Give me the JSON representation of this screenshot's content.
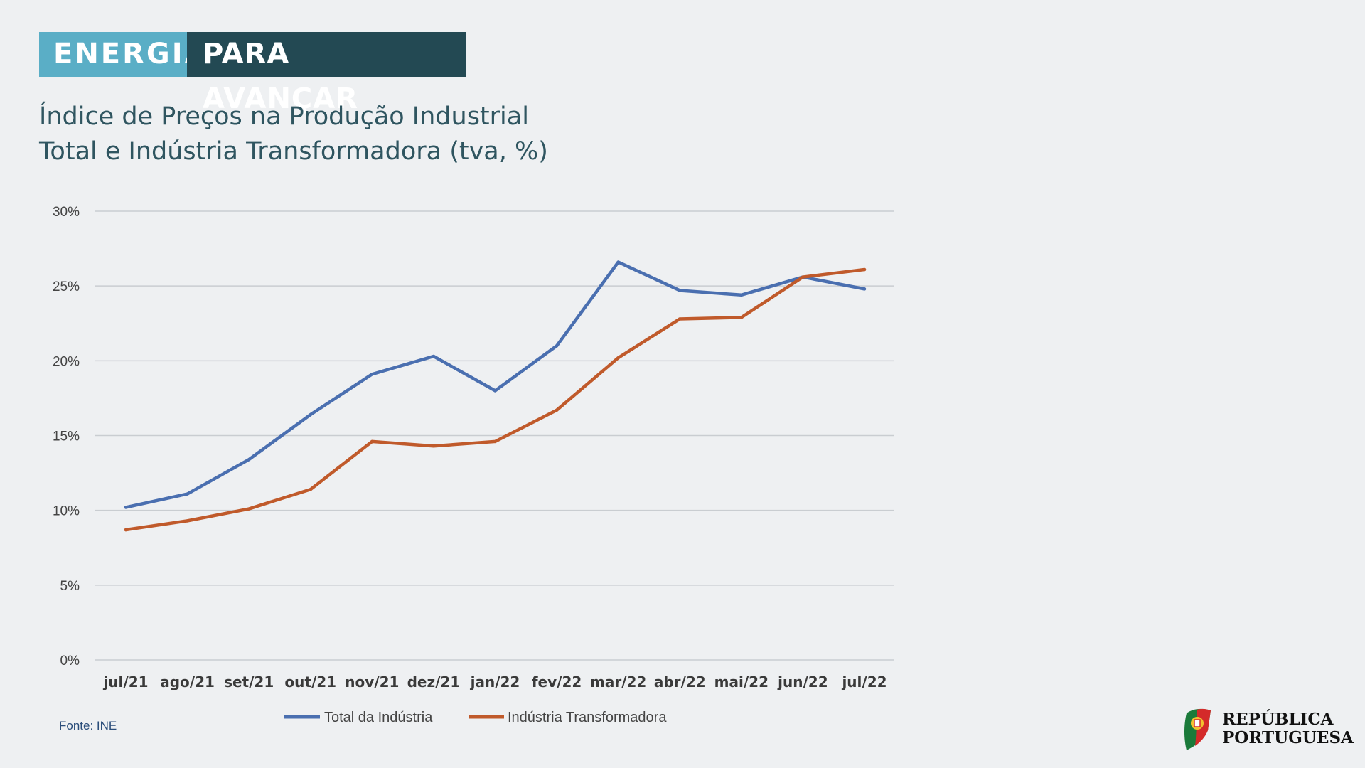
{
  "banner": {
    "left": "ENERGIA",
    "right": "PARA AVANÇAR"
  },
  "colors": {
    "banner_left": "#5aaec6",
    "banner_right": "#234953",
    "series_total": "#4a6fb0",
    "series_transf": "#c05a2b"
  },
  "source": "Fonte: INE",
  "logo": {
    "line1": "REPÚBLICA",
    "line2": "PORTUGUESA",
    "icon": "portuguese-flag-icon"
  },
  "chart_data": {
    "type": "line",
    "title": [
      "Índice de Preços na Produção Industrial",
      "Total e Indústria Transformadora (tva, %)"
    ],
    "xlabel": "",
    "ylabel": "",
    "categories": [
      "jul/21",
      "ago/21",
      "set/21",
      "out/21",
      "nov/21",
      "dez/21",
      "jan/22",
      "fev/22",
      "mar/22",
      "abr/22",
      "mai/22",
      "jun/22",
      "jul/22"
    ],
    "y_ticks": [
      "0%",
      "5%",
      "10%",
      "15%",
      "20%",
      "25%",
      "30%"
    ],
    "ylim": [
      0,
      30
    ],
    "grid": true,
    "legend": "bottom",
    "series": [
      {
        "name": "Total da Indústria",
        "color": "#4a6fb0",
        "values": [
          10.2,
          11.1,
          13.4,
          16.4,
          19.1,
          20.3,
          18.0,
          21.0,
          26.6,
          24.7,
          24.4,
          25.6,
          24.8
        ]
      },
      {
        "name": "Indústria Transformadora",
        "color": "#c05a2b",
        "values": [
          8.7,
          9.3,
          10.1,
          11.4,
          14.6,
          14.3,
          14.6,
          16.7,
          20.2,
          22.8,
          22.9,
          25.6,
          26.1
        ]
      }
    ]
  }
}
